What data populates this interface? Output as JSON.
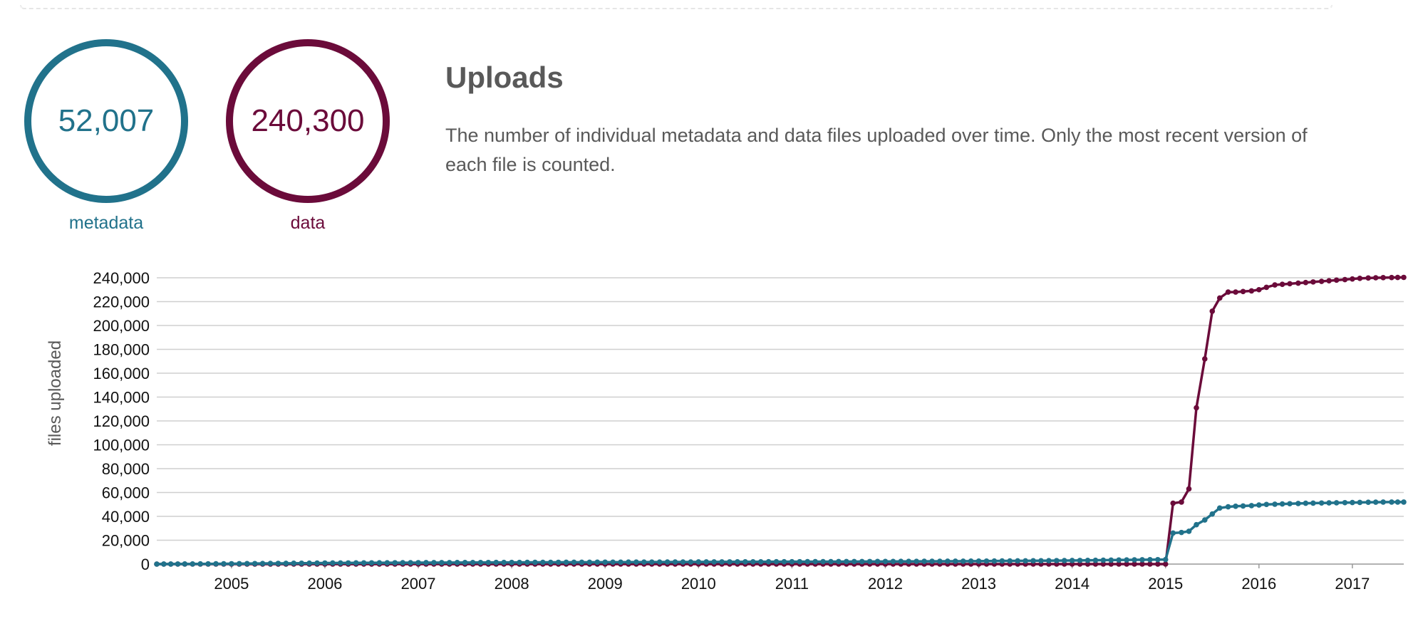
{
  "colors": {
    "metadata": "#21728b",
    "data": "#6b0b3a",
    "text": "#595959",
    "grid": "#cfcfcf"
  },
  "stats": {
    "metadata": {
      "value": "52,007",
      "label": "metadata"
    },
    "data": {
      "value": "240,300",
      "label": "data"
    }
  },
  "section": {
    "title": "Uploads",
    "description": "The number of individual metadata and data files uploaded over time. Only the most recent version of each file is counted."
  },
  "chart_data": {
    "type": "line",
    "ylabel": "files uploaded",
    "xlabel": "",
    "xlim": [
      2004.2,
      2017.55
    ],
    "ylim": [
      0,
      240000
    ],
    "yticks": [
      "0",
      "20,000",
      "40,000",
      "60,000",
      "80,000",
      "100,000",
      "120,000",
      "140,000",
      "160,000",
      "180,000",
      "200,000",
      "220,000",
      "240,000"
    ],
    "xticks": [
      "2005",
      "2006",
      "2007",
      "2008",
      "2009",
      "2010",
      "2011",
      "2012",
      "2013",
      "2014",
      "2015",
      "2016",
      "2017"
    ],
    "grid": "horizontal",
    "series": [
      {
        "key": "data",
        "x": [
          2004.2,
          2004.5,
          2005.0,
          2006.0,
          2007.0,
          2008.0,
          2009.0,
          2010.0,
          2011.0,
          2012.0,
          2013.0,
          2014.0,
          2014.5,
          2015.0,
          2015.08,
          2015.17,
          2015.25,
          2015.33,
          2015.42,
          2015.5,
          2015.58,
          2015.67,
          2015.75,
          2015.83,
          2015.92,
          2016.0,
          2016.08,
          2016.17,
          2016.25,
          2016.33,
          2016.42,
          2016.5,
          2016.58,
          2016.67,
          2016.75,
          2016.83,
          2016.92,
          2017.0,
          2017.08,
          2017.17,
          2017.25,
          2017.33,
          2017.42,
          2017.55
        ],
        "y": [
          0,
          0,
          0,
          0,
          0,
          0,
          0,
          0,
          0,
          0,
          0,
          0,
          0,
          0,
          51000,
          52000,
          63000,
          131000,
          172000,
          212000,
          223000,
          228000,
          228000,
          228500,
          229000,
          230000,
          232000,
          234000,
          234500,
          235000,
          235500,
          236000,
          236500,
          237000,
          237500,
          238000,
          238500,
          239000,
          239500,
          239800,
          240000,
          240100,
          240200,
          240300
        ]
      },
      {
        "key": "metadata",
        "x": [
          2004.2,
          2004.5,
          2005.0,
          2006.0,
          2007.0,
          2008.0,
          2009.0,
          2010.0,
          2011.0,
          2012.0,
          2013.0,
          2014.0,
          2014.5,
          2015.0,
          2015.08,
          2015.17,
          2015.25,
          2015.33,
          2015.42,
          2015.5,
          2015.58,
          2015.67,
          2015.75,
          2015.83,
          2015.92,
          2016.0,
          2016.08,
          2016.17,
          2016.25,
          2016.33,
          2016.42,
          2016.5,
          2016.58,
          2016.67,
          2016.75,
          2016.83,
          2016.92,
          2017.0,
          2017.08,
          2017.17,
          2017.25,
          2017.33,
          2017.42,
          2017.55
        ],
        "y": [
          0,
          100,
          300,
          900,
          1200,
          1400,
          1600,
          1800,
          2000,
          2200,
          2500,
          3000,
          3400,
          3800,
          26000,
          26500,
          27500,
          33000,
          37000,
          42000,
          47000,
          48000,
          48500,
          48700,
          49000,
          49500,
          50000,
          50200,
          50400,
          50600,
          50800,
          51000,
          51100,
          51200,
          51300,
          51400,
          51500,
          51600,
          51700,
          51800,
          51900,
          51950,
          52000,
          52007
        ]
      }
    ]
  }
}
